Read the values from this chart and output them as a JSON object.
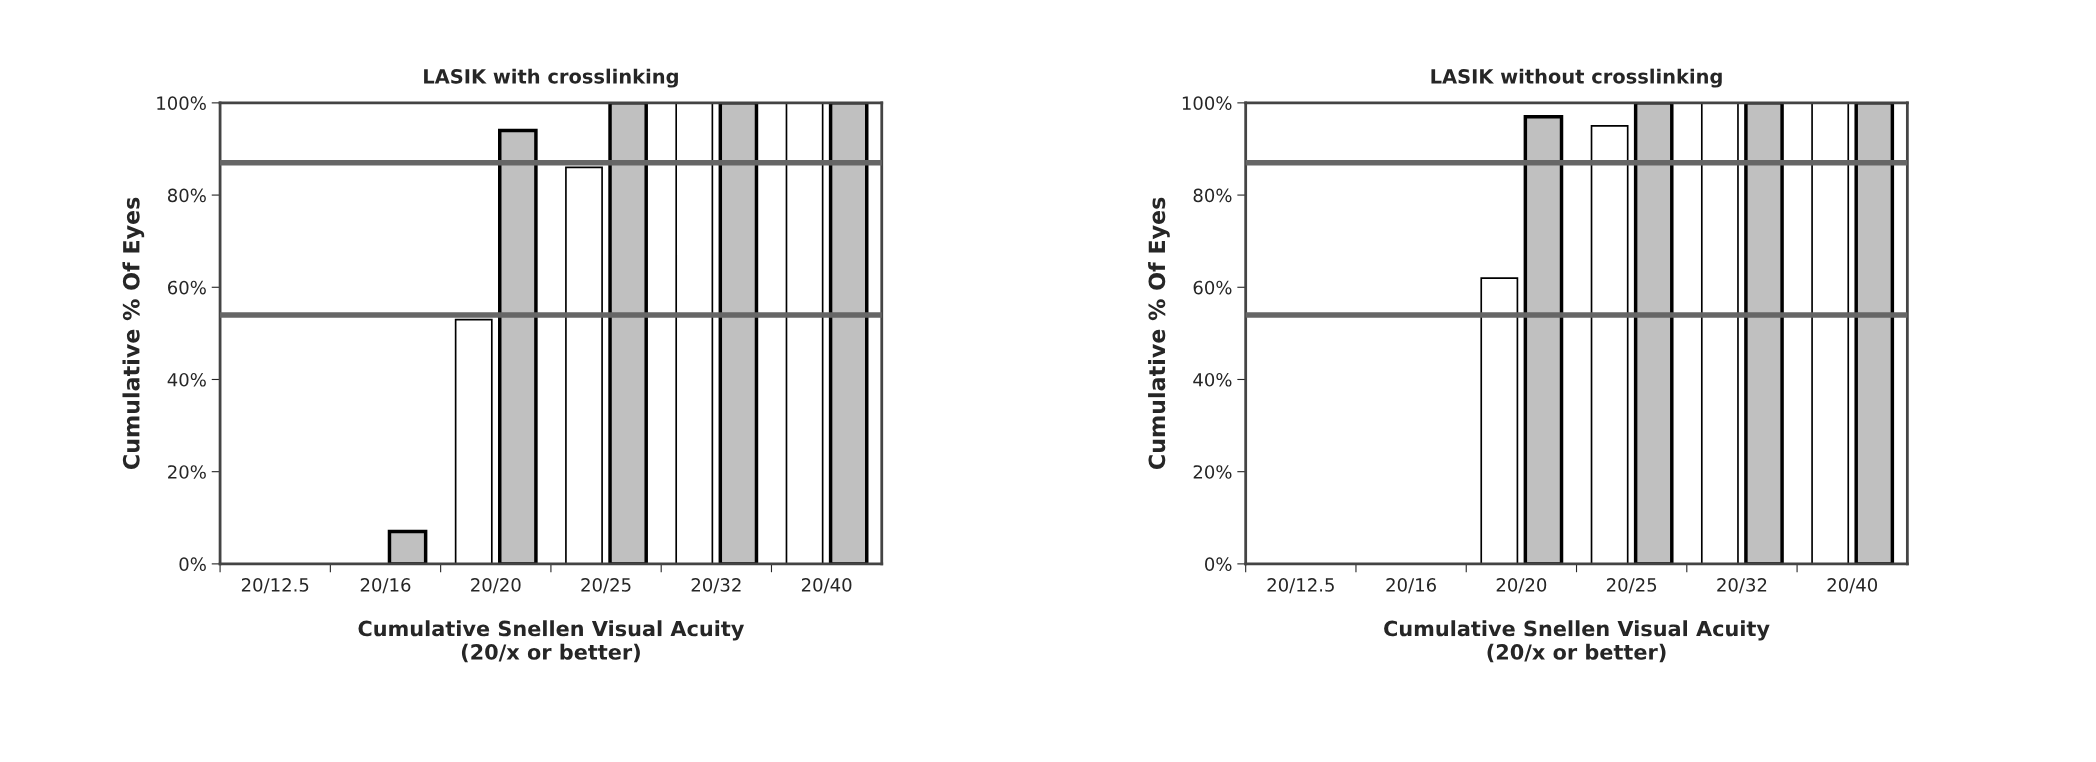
{
  "chart_data": [
    {
      "type": "bar",
      "title": "LASIK with crosslinking",
      "xlabel": "Cumulative Snellen Visual Acuity\n(20/x or better)",
      "ylabel": "Cumulative % Of Eyes",
      "categories": [
        "20/12.5",
        "20/16",
        "20/20",
        "20/25",
        "20/32",
        "20/40"
      ],
      "series": [
        {
          "color": "#ffffff",
          "values": [
            0,
            0,
            53,
            86,
            100,
            100
          ]
        },
        {
          "color": "#c0c0c0",
          "values": [
            0,
            7,
            94,
            100,
            100,
            100
          ]
        }
      ],
      "ylim": [
        0,
        100
      ],
      "yticks": [
        {
          "value": 0,
          "label": "0%"
        },
        {
          "value": 20,
          "label": "20%"
        },
        {
          "value": 40,
          "label": "40%"
        },
        {
          "value": 60,
          "label": "60%"
        },
        {
          "value": 80,
          "label": "80%"
        },
        {
          "value": 100,
          "label": "100%"
        }
      ],
      "ref_lines": [
        {
          "axis": "y",
          "value": 87,
          "color": "#666666"
        },
        {
          "axis": "y",
          "value": 54,
          "color": "#666666"
        }
      ],
      "grid": false
    },
    {
      "type": "bar",
      "title": "LASIK without crosslinking",
      "xlabel": "Cumulative Snellen Visual Acuity\n(20/x or better)",
      "ylabel": "Cumulative % Of Eyes",
      "categories": [
        "20/12.5",
        "20/16",
        "20/20",
        "20/25",
        "20/32",
        "20/40"
      ],
      "series": [
        {
          "color": "#ffffff",
          "values": [
            0,
            0,
            62,
            95,
            100,
            100
          ]
        },
        {
          "color": "#c0c0c0",
          "values": [
            0,
            0,
            97,
            100,
            100,
            100
          ]
        }
      ],
      "ylim": [
        0,
        100
      ],
      "yticks": [
        {
          "value": 0,
          "label": "0%"
        },
        {
          "value": 20,
          "label": "20%"
        },
        {
          "value": 40,
          "label": "40%"
        },
        {
          "value": 60,
          "label": "60%"
        },
        {
          "value": 80,
          "label": "80%"
        },
        {
          "value": 100,
          "label": "100%"
        }
      ],
      "ref_lines": [
        {
          "axis": "y",
          "value": 87,
          "color": "#666666"
        },
        {
          "axis": "y",
          "value": 54,
          "color": "#666666"
        }
      ],
      "grid": false
    }
  ]
}
